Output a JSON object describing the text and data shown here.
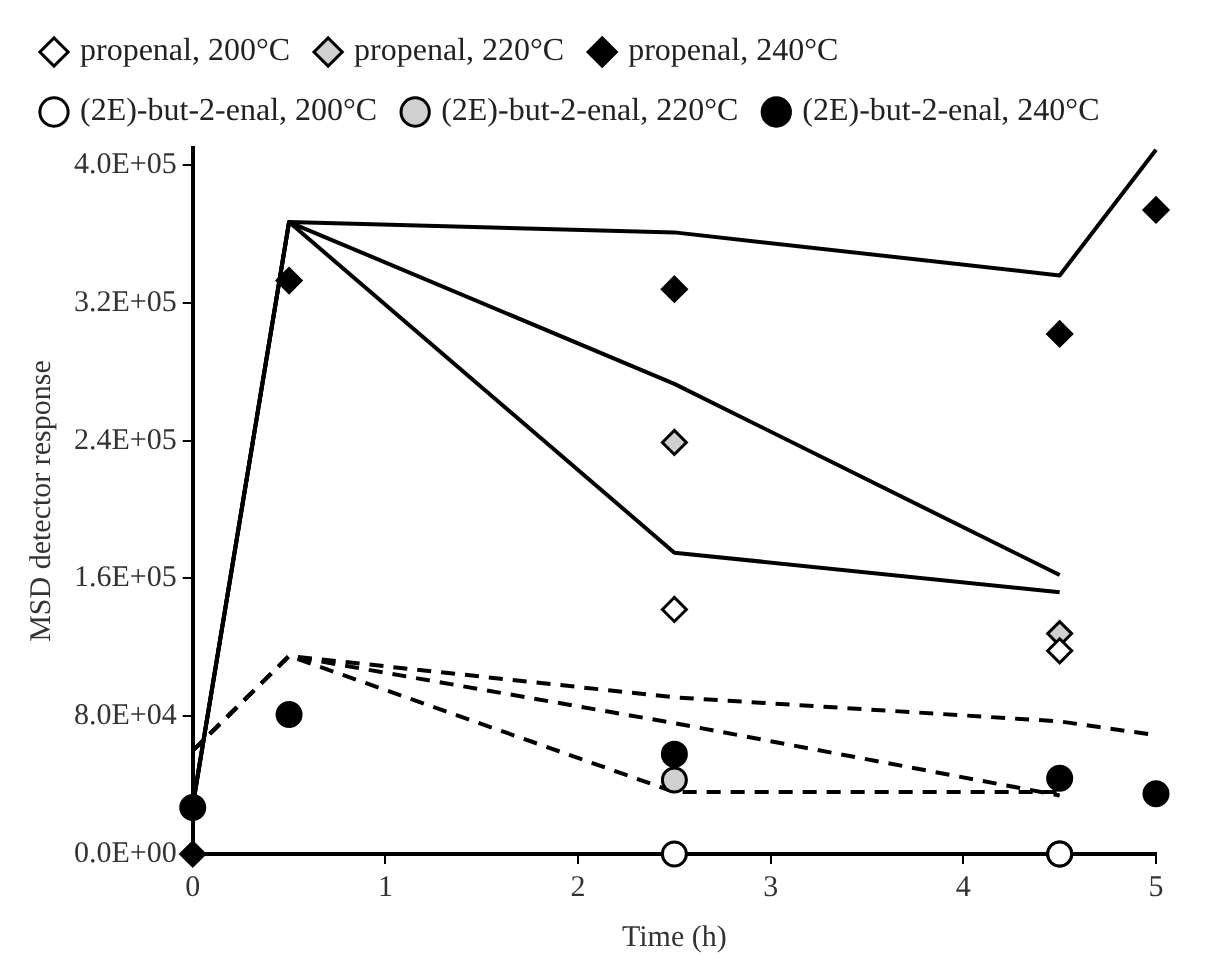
{
  "chart_data": {
    "type": "scatter",
    "xlabel": "Time (h)",
    "ylabel": "MSD detector response",
    "xlim": [
      0,
      5
    ],
    "xticks": [
      0,
      1,
      2,
      3,
      4,
      5
    ],
    "ylim": [
      0,
      410000
    ],
    "yticks": [
      {
        "value": 0,
        "label": "0.0E+00"
      },
      {
        "value": 80000,
        "label": "8.0E+04"
      },
      {
        "value": 160000,
        "label": "1.6E+05"
      },
      {
        "value": 240000,
        "label": "2.4E+05"
      },
      {
        "value": 320000,
        "label": "3.2E+05"
      },
      {
        "value": 400000,
        "label": "4.0E+05"
      }
    ],
    "grid": false,
    "legend": "top",
    "series": [
      {
        "name": "propenal, 200°C",
        "color": "#ffffff",
        "marker": "diamond",
        "x": [
          2.5,
          4.5
        ],
        "values": [
          142000,
          118000
        ]
      },
      {
        "name": "propenal, 220°C",
        "color": "#d0d0d0",
        "marker": "diamond",
        "x": [
          2.5,
          4.5
        ],
        "values": [
          239000,
          128000
        ]
      },
      {
        "name": "propenal, 240°C",
        "color": "#000000",
        "marker": "diamond",
        "x": [
          0,
          0.5,
          2.5,
          4.5,
          5
        ],
        "values": [
          0,
          333000,
          328000,
          302000,
          374000
        ]
      },
      {
        "name": "(2E)-but-2-enal, 200°C",
        "color": "#ffffff",
        "marker": "circle",
        "x": [
          2.5,
          4.5
        ],
        "values": [
          0,
          0
        ]
      },
      {
        "name": "(2E)-but-2-enal, 220°C",
        "color": "#d0d0d0",
        "marker": "circle",
        "x": [
          2.5,
          4.5
        ],
        "values": [
          43000,
          0
        ]
      },
      {
        "name": "(2E)-but-2-enal, 240°C",
        "color": "#000000",
        "marker": "circle",
        "x": [
          0,
          0.5,
          2.5,
          4.5,
          5
        ],
        "values": [
          27000,
          81000,
          58000,
          44000,
          35000
        ]
      },
      {
        "type": "line",
        "color": "#000000",
        "marker": "none",
        "line_style": "solid",
        "x": [
          0,
          0.5,
          2.5,
          4.5
        ],
        "values": [
          28000,
          367000,
          175000,
          152000
        ]
      },
      {
        "type": "line",
        "color": "#000000",
        "marker": "none",
        "line_style": "solid",
        "x": [
          0,
          0.5,
          2.5,
          4.5
        ],
        "values": [
          28000,
          367000,
          273000,
          162000
        ]
      },
      {
        "type": "line",
        "color": "#000000",
        "marker": "none",
        "line_style": "solid",
        "x": [
          0,
          0.5,
          2.5,
          4.5,
          5
        ],
        "values": [
          28000,
          367000,
          361000,
          336000,
          409000
        ]
      },
      {
        "type": "line",
        "color": "#000000",
        "marker": "none",
        "line_style": "dashed",
        "x": [
          0,
          0.5,
          2.5,
          4.5
        ],
        "values": [
          60000,
          115000,
          36000,
          36000
        ]
      },
      {
        "type": "line",
        "color": "#000000",
        "marker": "none",
        "line_style": "dashed",
        "x": [
          0,
          0.5,
          2.5,
          4.5
        ],
        "values": [
          60000,
          115000,
          76000,
          34000
        ]
      },
      {
        "type": "line",
        "color": "#000000",
        "marker": "none",
        "line_style": "dashed",
        "x": [
          0,
          0.5,
          2.5,
          4.5,
          5
        ],
        "values": [
          60000,
          115000,
          91000,
          77000,
          69000
        ]
      }
    ]
  }
}
